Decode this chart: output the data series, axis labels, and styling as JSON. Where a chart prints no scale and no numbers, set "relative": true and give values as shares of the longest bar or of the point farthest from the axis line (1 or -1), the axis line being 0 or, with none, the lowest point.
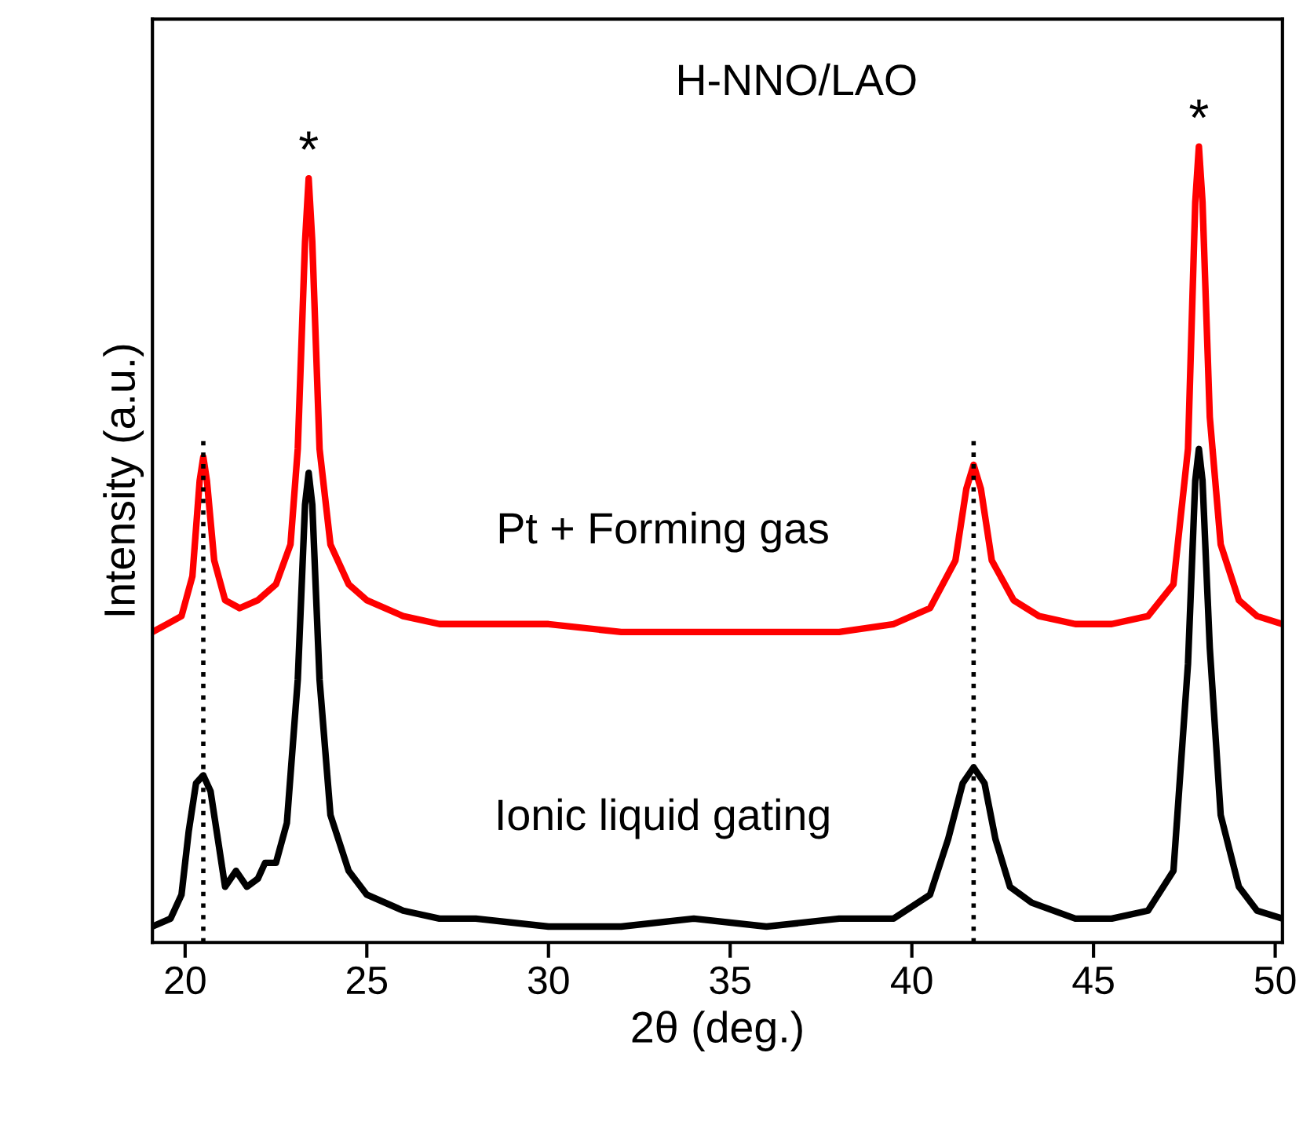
{
  "chart_data": {
    "type": "line",
    "relative": true,
    "xlabel": "2θ (deg.)",
    "ylabel": "Intensity (a.u.)",
    "xlim": [
      19.1,
      50.2
    ],
    "xticks": [
      20,
      25,
      30,
      35,
      40,
      45,
      50
    ],
    "tick_labels": "x",
    "grid": false,
    "series": [
      {
        "name": "Pt + Forming gas",
        "color": "#ff0000",
        "x": [
          19.1,
          19.5,
          19.9,
          20.2,
          20.4,
          20.5,
          20.6,
          20.8,
          21.1,
          21.5,
          22.0,
          22.5,
          22.9,
          23.1,
          23.3,
          23.4,
          23.5,
          23.7,
          24.0,
          24.5,
          25,
          26,
          27,
          28,
          30,
          32,
          34,
          36,
          38,
          39.5,
          40.5,
          41.2,
          41.5,
          41.7,
          41.9,
          42.2,
          42.8,
          43.5,
          44.5,
          45.5,
          46.5,
          47.2,
          47.6,
          47.8,
          47.9,
          48.0,
          48.2,
          48.5,
          49,
          49.5,
          50.2
        ],
        "values": [
          0.39,
          0.4,
          0.41,
          0.46,
          0.58,
          0.61,
          0.58,
          0.48,
          0.43,
          0.42,
          0.43,
          0.45,
          0.5,
          0.62,
          0.88,
          0.96,
          0.88,
          0.62,
          0.5,
          0.45,
          0.43,
          0.41,
          0.4,
          0.4,
          0.4,
          0.39,
          0.39,
          0.39,
          0.39,
          0.4,
          0.42,
          0.48,
          0.57,
          0.6,
          0.57,
          0.48,
          0.43,
          0.41,
          0.4,
          0.4,
          0.41,
          0.45,
          0.62,
          0.93,
          1.0,
          0.93,
          0.66,
          0.5,
          0.43,
          0.41,
          0.4
        ]
      },
      {
        "name": "Ionic liquid gating",
        "color": "#000000",
        "x": [
          19.1,
          19.6,
          19.9,
          20.1,
          20.3,
          20.5,
          20.7,
          20.9,
          21.1,
          21.4,
          21.7,
          22.0,
          22.2,
          22.5,
          22.8,
          23.1,
          23.3,
          23.4,
          23.5,
          23.7,
          24.0,
          24.5,
          25,
          26,
          27,
          28,
          30,
          32,
          34,
          36,
          38,
          39.5,
          40.5,
          41.0,
          41.4,
          41.7,
          42.0,
          42.3,
          42.7,
          43.3,
          44.5,
          45.5,
          46.5,
          47.2,
          47.6,
          47.8,
          47.9,
          48.0,
          48.2,
          48.5,
          49,
          49.5,
          50.2
        ],
        "values": [
          0.02,
          0.03,
          0.06,
          0.14,
          0.2,
          0.21,
          0.19,
          0.13,
          0.07,
          0.09,
          0.07,
          0.08,
          0.1,
          0.1,
          0.15,
          0.33,
          0.55,
          0.59,
          0.55,
          0.33,
          0.16,
          0.09,
          0.06,
          0.04,
          0.03,
          0.03,
          0.02,
          0.02,
          0.03,
          0.02,
          0.03,
          0.03,
          0.06,
          0.13,
          0.2,
          0.22,
          0.2,
          0.13,
          0.07,
          0.05,
          0.03,
          0.03,
          0.04,
          0.09,
          0.35,
          0.58,
          0.62,
          0.58,
          0.37,
          0.16,
          0.07,
          0.04,
          0.03
        ]
      }
    ],
    "ref_lines": [
      {
        "axis": "x",
        "value": 20.5,
        "line_style": "dotted",
        "color": "#000000"
      },
      {
        "axis": "x",
        "value": 41.7,
        "line_style": "dotted",
        "color": "#000000"
      }
    ],
    "annotations": [
      "H-NNO/LAO",
      {
        "text": "*",
        "x": 23.4,
        "y": 0.96
      },
      {
        "text": "*",
        "x": 47.9,
        "y": 1.0
      }
    ]
  }
}
